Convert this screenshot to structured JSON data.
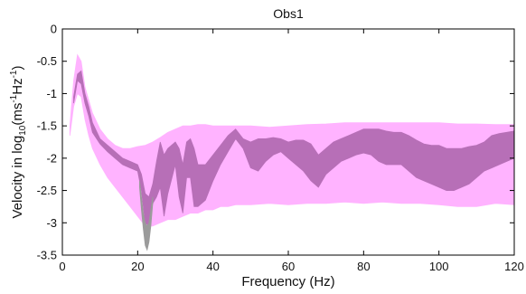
{
  "chart_data": {
    "type": "area",
    "title": "Obs1",
    "xlabel": "Frequency (Hz)",
    "ylabel": {
      "prefix": "Velocity in log",
      "sub": "10",
      "mid": "(ms",
      "sup1": "-1",
      "mid2": "Hz",
      "sup2": "-1",
      "suffix": ")"
    },
    "xlim": [
      0,
      120
    ],
    "ylim": [
      -3.5,
      0
    ],
    "x_ticks": [
      0,
      20,
      40,
      60,
      80,
      100,
      120
    ],
    "x_tick_labels": [
      "0",
      "20",
      "40",
      "60",
      "80",
      "100",
      "120"
    ],
    "y_ticks": [
      0,
      -0.5,
      -1,
      -1.5,
      -2,
      -2.5,
      -3,
      -3.5
    ],
    "y_tick_labels": [
      "0",
      "-0.5",
      "-1",
      "-1.5",
      "-2",
      "-2.5",
      "-3",
      "-3.5"
    ],
    "grid": false,
    "colors": {
      "outer_band": "#ffb3ff",
      "inner_band": "#b76fb7",
      "gray_band": "#9b9b9b"
    },
    "series": [
      {
        "band": "outer",
        "x": [
          2,
          3,
          4,
          5,
          6,
          7,
          8,
          10,
          12,
          14,
          16,
          18,
          20,
          22,
          24,
          26,
          28,
          30,
          32,
          34,
          36,
          38,
          40,
          42,
          44,
          46,
          48,
          50,
          55,
          60,
          65,
          70,
          75,
          80,
          85,
          90,
          95,
          100,
          105,
          110,
          115,
          120
        ],
        "upper": [
          -1.5,
          -0.8,
          -0.4,
          -0.5,
          -0.9,
          -1.1,
          -1.3,
          -1.55,
          -1.7,
          -1.8,
          -1.85,
          -1.85,
          -1.82,
          -1.8,
          -1.75,
          -1.68,
          -1.6,
          -1.55,
          -1.5,
          -1.5,
          -1.48,
          -1.48,
          -1.5,
          -1.5,
          -1.5,
          -1.5,
          -1.5,
          -1.5,
          -1.52,
          -1.5,
          -1.48,
          -1.47,
          -1.45,
          -1.45,
          -1.45,
          -1.45,
          -1.45,
          -1.45,
          -1.47,
          -1.47,
          -1.48,
          -1.48
        ],
        "lower": [
          -1.65,
          -1.2,
          -1.0,
          -1.05,
          -1.4,
          -1.65,
          -1.85,
          -2.1,
          -2.3,
          -2.45,
          -2.6,
          -2.75,
          -2.9,
          -3.05,
          -3.05,
          -3.0,
          -2.95,
          -2.95,
          -2.9,
          -2.85,
          -2.85,
          -2.8,
          -2.8,
          -2.75,
          -2.75,
          -2.72,
          -2.72,
          -2.72,
          -2.7,
          -2.72,
          -2.7,
          -2.7,
          -2.68,
          -2.7,
          -2.68,
          -2.7,
          -2.7,
          -2.72,
          -2.75,
          -2.75,
          -2.7,
          -2.72
        ]
      },
      {
        "band": "inner",
        "x": [
          3,
          4,
          5,
          6,
          7,
          8,
          10,
          12,
          14,
          16,
          18,
          20,
          21,
          22,
          23,
          24,
          25,
          26,
          27,
          28,
          30,
          31,
          32,
          33,
          34,
          35,
          36,
          38,
          40,
          42,
          44,
          46,
          48,
          50,
          52,
          54,
          56,
          58,
          60,
          62,
          64,
          66,
          68,
          70,
          72,
          74,
          76,
          78,
          80,
          82,
          84,
          86,
          88,
          90,
          92,
          94,
          96,
          98,
          100,
          102,
          104,
          106,
          108,
          110,
          112,
          114,
          116,
          118,
          120
        ],
        "upper": [
          -1.05,
          -0.7,
          -0.65,
          -1.0,
          -1.2,
          -1.45,
          -1.7,
          -1.8,
          -1.9,
          -2.0,
          -2.05,
          -2.1,
          -2.25,
          -2.55,
          -2.6,
          -2.4,
          -2.05,
          -1.75,
          -1.95,
          -1.85,
          -1.75,
          -1.85,
          -2.1,
          -1.75,
          -1.7,
          -1.85,
          -2.1,
          -2.1,
          -1.95,
          -1.8,
          -1.65,
          -1.55,
          -1.7,
          -1.75,
          -1.7,
          -1.7,
          -1.68,
          -1.7,
          -1.75,
          -1.72,
          -1.72,
          -1.78,
          -1.95,
          -1.85,
          -1.75,
          -1.7,
          -1.65,
          -1.6,
          -1.55,
          -1.55,
          -1.55,
          -1.58,
          -1.6,
          -1.6,
          -1.65,
          -1.72,
          -1.78,
          -1.8,
          -1.8,
          -1.85,
          -1.85,
          -1.85,
          -1.82,
          -1.8,
          -1.75,
          -1.65,
          -1.62,
          -1.6,
          -1.58
        ],
        "lower": [
          -1.15,
          -0.8,
          -0.85,
          -1.15,
          -1.35,
          -1.6,
          -1.78,
          -1.9,
          -2.0,
          -2.1,
          -2.15,
          -2.2,
          -2.5,
          -3.0,
          -3.05,
          -2.7,
          -2.6,
          -2.45,
          -2.9,
          -2.55,
          -2.1,
          -2.6,
          -2.85,
          -2.3,
          -2.3,
          -2.75,
          -2.75,
          -2.65,
          -2.35,
          -2.1,
          -1.9,
          -1.7,
          -1.85,
          -2.15,
          -2.2,
          -2.05,
          -1.95,
          -1.9,
          -2.0,
          -2.1,
          -2.2,
          -2.35,
          -2.45,
          -2.25,
          -2.15,
          -2.05,
          -2.0,
          -1.95,
          -1.92,
          -1.95,
          -2.05,
          -2.1,
          -2.1,
          -2.1,
          -2.2,
          -2.3,
          -2.35,
          -2.4,
          -2.45,
          -2.5,
          -2.5,
          -2.45,
          -2.4,
          -2.3,
          -2.2,
          -2.15,
          -2.1,
          -2.05,
          -2.0
        ]
      },
      {
        "band": "gray",
        "x": [
          20.5,
          21,
          21.5,
          22,
          22.5,
          23,
          23.5,
          24
        ],
        "upper": [
          -2.35,
          -2.6,
          -2.85,
          -3.0,
          -3.05,
          -3.0,
          -2.8,
          -2.6
        ],
        "lower": [
          -2.45,
          -2.8,
          -3.1,
          -3.35,
          -3.42,
          -3.3,
          -3.05,
          -2.7
        ]
      }
    ]
  }
}
